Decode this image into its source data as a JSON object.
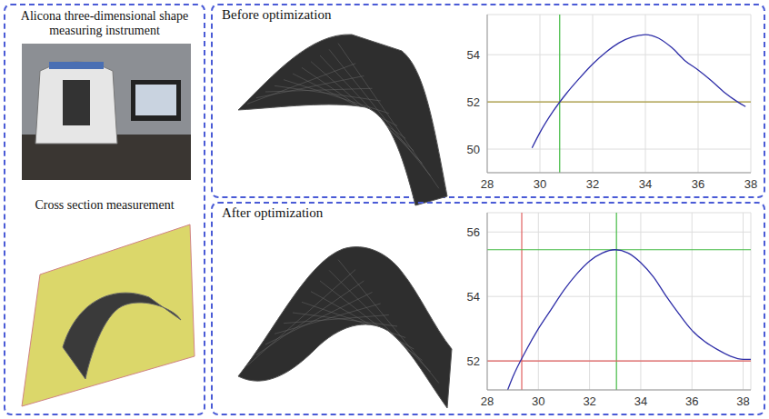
{
  "panels": {
    "left": {
      "instrument_label": "Alicona three-dimensional shape measuring instrument",
      "section_label": "Cross section measurement"
    }
  },
  "chart_data": [
    {
      "type": "line",
      "title": "Before optimization",
      "x": [
        29.7,
        30.0,
        30.5,
        31.0,
        31.5,
        32.0,
        32.5,
        33.0,
        33.5,
        34.0,
        34.5,
        35.0,
        35.5,
        36.0,
        36.5,
        37.0,
        37.5,
        37.8
      ],
      "values": [
        50.05,
        50.7,
        51.6,
        52.35,
        53.0,
        53.6,
        54.1,
        54.5,
        54.75,
        54.85,
        54.7,
        54.3,
        53.75,
        53.35,
        52.9,
        52.4,
        52.0,
        51.8
      ],
      "color": "#2f2fa8",
      "xlim": [
        28,
        38
      ],
      "xticks": [
        28,
        30,
        32,
        34,
        36,
        38
      ],
      "ylim": [
        49,
        55.7
      ],
      "yticks": [
        50,
        52,
        54
      ],
      "grid": true,
      "vlines": [
        {
          "value": 30.75,
          "color": "#44bb44"
        }
      ],
      "hlines": [
        {
          "value": 52,
          "color": "#a89a3a"
        }
      ]
    },
    {
      "type": "line",
      "title": "After optimization",
      "x": [
        28.8,
        29.0,
        29.5,
        30.0,
        30.5,
        31.0,
        31.5,
        32.0,
        32.5,
        33.0,
        33.5,
        34.0,
        34.5,
        35.0,
        35.5,
        36.0,
        36.5,
        37.0,
        37.5,
        38.0,
        38.3
      ],
      "values": [
        51.1,
        51.5,
        52.3,
        53.0,
        53.6,
        54.2,
        54.7,
        55.1,
        55.35,
        55.45,
        55.35,
        55.05,
        54.6,
        54.0,
        53.45,
        52.95,
        52.6,
        52.35,
        52.15,
        52.05,
        52.05
      ],
      "color": "#2f2fa8",
      "xlim": [
        28,
        38.3
      ],
      "xticks": [
        28,
        30,
        32,
        34,
        36,
        38
      ],
      "ylim": [
        51.1,
        56.6
      ],
      "yticks": [
        52,
        54,
        56
      ],
      "grid": true,
      "vlines": [
        {
          "value": 29.35,
          "color": "#e06060"
        },
        {
          "value": 33.05,
          "color": "#44bb44"
        }
      ],
      "hlines": [
        {
          "value": 55.45,
          "color": "#44bb44"
        },
        {
          "value": 52,
          "color": "#e06060"
        }
      ]
    }
  ]
}
